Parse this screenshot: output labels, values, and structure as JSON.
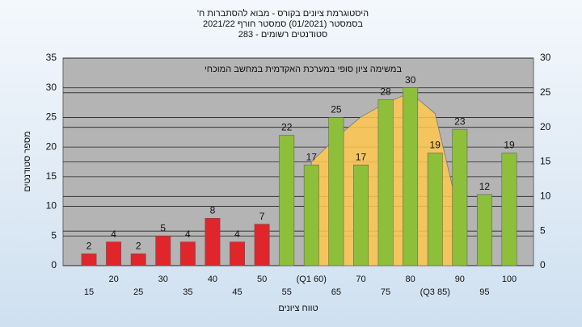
{
  "chart_data": {
    "type": "bar",
    "title": [
      "'היסטוגרמת ציונים בקורס - מבוא להסתברות ח",
      "בסמסטר (01/2021) סמסטר חורף 2021/22",
      "סטודנטים רשומים - 283"
    ],
    "annotation": "במשימה ציון סופי במערכת האקדמית במחשב המוכחי",
    "xlabel": "טווח ציונים",
    "ylabel": "מספר סטודנטים",
    "categories": [
      "15",
      "20",
      "25",
      "30",
      "35",
      "40",
      "45",
      "50",
      "55",
      "(Q1 60)",
      "65",
      "70",
      "75",
      "80",
      "(Q3 85)",
      "90",
      "95",
      "100"
    ],
    "series": [
      {
        "color": "#e0262a",
        "values": [
          2,
          4,
          2,
          5,
          4,
          8,
          4,
          7,
          null,
          null,
          null,
          null,
          null,
          null,
          null,
          null,
          null,
          null
        ]
      },
      {
        "color": "#8dbf3a",
        "values": [
          null,
          null,
          null,
          null,
          null,
          null,
          null,
          null,
          22,
          17,
          25,
          17,
          28,
          30,
          19,
          23,
          12,
          19
        ]
      }
    ],
    "area": {
      "color": "#ffc850",
      "axis": "y2",
      "values": [
        null,
        null,
        null,
        null,
        null,
        null,
        null,
        null,
        null,
        15,
        18.5,
        21.5,
        23.5,
        25,
        22,
        7,
        null,
        null
      ]
    },
    "ylim": [
      0,
      35
    ],
    "yticks": [
      0,
      5,
      10,
      15,
      20,
      25,
      30,
      35
    ],
    "y2lim": [
      0,
      30
    ],
    "y2ticks": [
      0,
      5,
      10,
      15,
      20,
      25,
      30
    ],
    "grid": true
  }
}
